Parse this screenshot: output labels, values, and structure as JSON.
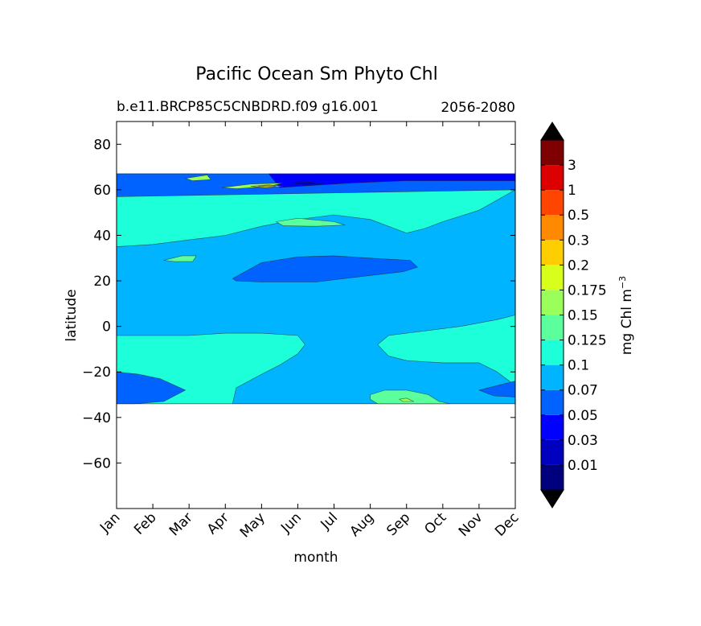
{
  "chart_data": {
    "type": "contourf",
    "title": "Pacific Ocean Sm Phyto Chl",
    "subtitle_left": "b.e11.BRCP85C5CNBDRD.f09 g16.001",
    "subtitle_right": "2056-2080",
    "xlabel": "month",
    "ylabel": "latitude",
    "x_ticks": [
      "Jan",
      "Feb",
      "Mar",
      "Apr",
      "May",
      "Jun",
      "Jul",
      "Aug",
      "Sep",
      "Oct",
      "Nov",
      "Dec"
    ],
    "y_ticks": [
      {
        "value": 80,
        "label": "80"
      },
      {
        "value": 60,
        "label": "60"
      },
      {
        "value": 40,
        "label": "40"
      },
      {
        "value": 20,
        "label": "20"
      },
      {
        "value": 0,
        "label": "0"
      },
      {
        "value": -20,
        "label": "−20"
      },
      {
        "value": -40,
        "label": "−40"
      },
      {
        "value": -60,
        "label": "−60"
      }
    ],
    "ylim": [
      -80,
      90
    ],
    "xlim": [
      0,
      11
    ],
    "data_lat_range": [
      -34,
      67
    ],
    "colorbar": {
      "label": "mg Chl m",
      "label_superscript": "−3",
      "extend": "both",
      "tick_labels": [
        "0.01",
        "0.03",
        "0.05",
        "0.07",
        "0.1",
        "0.125",
        "0.15",
        "0.175",
        "0.2",
        "0.3",
        "0.5",
        "1",
        "3"
      ],
      "colors": [
        "#00007f",
        "#0000bf",
        "#0000ff",
        "#0063ff",
        "#00b4ff",
        "#1cffd8",
        "#5bff9b",
        "#9bff5b",
        "#d8ff1c",
        "#ffce00",
        "#ff8900",
        "#ff4500",
        "#dd0000",
        "#7f0000"
      ],
      "under_color": "#000000",
      "over_color": "#000000"
    },
    "regions": [
      {
        "level": 4,
        "points": [
          [
            0,
            67
          ],
          [
            11,
            67
          ],
          [
            11,
            -34
          ],
          [
            0,
            -34
          ]
        ]
      },
      {
        "level": 5,
        "points": [
          [
            0,
            35
          ],
          [
            1,
            36
          ],
          [
            2,
            38
          ],
          [
            3,
            40
          ],
          [
            4,
            44
          ],
          [
            5,
            47
          ],
          [
            6,
            49
          ],
          [
            7,
            47
          ],
          [
            8,
            41
          ],
          [
            8.5,
            43
          ],
          [
            9,
            46
          ],
          [
            10,
            51
          ],
          [
            11,
            60
          ],
          [
            11,
            67
          ],
          [
            9,
            67
          ],
          [
            7,
            67
          ],
          [
            5.5,
            67
          ],
          [
            5,
            60
          ],
          [
            4.5,
            62
          ],
          [
            4,
            62
          ],
          [
            3.5,
            61
          ],
          [
            3,
            63
          ],
          [
            2.5,
            67
          ],
          [
            0,
            67
          ]
        ]
      },
      {
        "level": 5,
        "points": [
          [
            0,
            -4
          ],
          [
            2,
            -4
          ],
          [
            3,
            -3
          ],
          [
            4,
            -3
          ],
          [
            5,
            -4
          ],
          [
            5.2,
            -8
          ],
          [
            5,
            -12
          ],
          [
            4.5,
            -17
          ],
          [
            4,
            -21
          ],
          [
            3.3,
            -27
          ],
          [
            3.2,
            -34
          ],
          [
            11,
            -34
          ],
          [
            11,
            -26
          ],
          [
            10.5,
            -20
          ],
          [
            10,
            -16
          ],
          [
            9,
            -16
          ],
          [
            8,
            -15
          ],
          [
            7.5,
            -13
          ],
          [
            7.2,
            -8
          ],
          [
            7.5,
            -4
          ],
          [
            8.5,
            -2
          ],
          [
            9.5,
            0
          ],
          [
            10.5,
            3
          ],
          [
            11,
            5
          ],
          [
            11,
            -34
          ],
          [
            0,
            -34
          ]
        ]
      },
      {
        "level": 6,
        "points": [
          [
            7,
            -30
          ],
          [
            7.4,
            -28
          ],
          [
            8,
            -28
          ],
          [
            8.6,
            -30
          ],
          [
            8.9,
            -33
          ],
          [
            9.2,
            -34
          ],
          [
            7.2,
            -34
          ],
          [
            7,
            -32
          ]
        ]
      },
      {
        "level": 6,
        "points": [
          [
            4.4,
            46
          ],
          [
            5.0,
            47.5
          ],
          [
            6.0,
            46
          ],
          [
            6.3,
            44.5
          ],
          [
            5.5,
            44
          ],
          [
            4.6,
            44.2
          ]
        ]
      },
      {
        "level": 6,
        "points": [
          [
            1.3,
            29
          ],
          [
            1.8,
            31
          ],
          [
            2.2,
            31
          ],
          [
            2.1,
            28.5
          ],
          [
            1.6,
            28.5
          ]
        ]
      },
      {
        "level": 3,
        "points": [
          [
            3.2,
            21
          ],
          [
            4.0,
            28
          ],
          [
            5.0,
            30.5
          ],
          [
            6.0,
            31
          ],
          [
            7.0,
            30
          ],
          [
            8.1,
            29
          ],
          [
            8.3,
            26
          ],
          [
            7.9,
            24
          ],
          [
            6.8,
            22
          ],
          [
            5.5,
            19.5
          ],
          [
            4.0,
            19.5
          ],
          [
            3.3,
            20
          ]
        ]
      },
      {
        "level": 3,
        "points": [
          [
            0,
            -20
          ],
          [
            0.6,
            -21
          ],
          [
            1.2,
            -23
          ],
          [
            1.9,
            -28
          ],
          [
            1.3,
            -33
          ],
          [
            0.5,
            -34
          ],
          [
            0,
            -34
          ]
        ]
      },
      {
        "level": 3,
        "points": [
          [
            10,
            -28
          ],
          [
            10.5,
            -26
          ],
          [
            11,
            -24
          ],
          [
            11,
            -31
          ],
          [
            10.4,
            -30.5
          ]
        ]
      },
      {
        "level": 3,
        "points": [
          [
            0,
            57
          ],
          [
            11,
            60
          ],
          [
            11,
            67
          ],
          [
            0,
            67
          ]
        ]
      },
      {
        "level": 2,
        "points": [
          [
            4.5,
            61
          ],
          [
            5.5,
            62
          ],
          [
            6.5,
            63
          ],
          [
            8,
            64
          ],
          [
            11,
            64
          ],
          [
            11,
            67
          ],
          [
            4.2,
            67
          ]
        ]
      },
      {
        "level": 1,
        "points": [
          [
            4.8,
            63
          ],
          [
            5.3,
            63.5
          ],
          [
            5.7,
            62.5
          ],
          [
            5.2,
            62
          ]
        ]
      },
      {
        "level": 7,
        "points": [
          [
            2.9,
            61
          ],
          [
            3.7,
            62.5
          ],
          [
            4.6,
            63
          ],
          [
            4.2,
            61.5
          ],
          [
            3.3,
            60.5
          ]
        ]
      },
      {
        "level": 7,
        "points": [
          [
            1.9,
            65
          ],
          [
            2.5,
            66.5
          ],
          [
            2.6,
            64.5
          ],
          [
            2.1,
            64
          ]
        ]
      },
      {
        "level": 8,
        "points": [
          [
            3.7,
            61.5
          ],
          [
            4.2,
            62.2
          ],
          [
            4.6,
            61.6
          ],
          [
            4.1,
            61
          ]
        ]
      },
      {
        "level": 9,
        "points": [
          [
            3.9,
            61.6
          ],
          [
            4.3,
            62
          ],
          [
            4.4,
            61.5
          ]
        ]
      },
      {
        "level": 7,
        "points": [
          [
            7.8,
            -32
          ],
          [
            8.0,
            -31.5
          ],
          [
            8.2,
            -33
          ],
          [
            7.9,
            -33
          ]
        ]
      }
    ]
  }
}
